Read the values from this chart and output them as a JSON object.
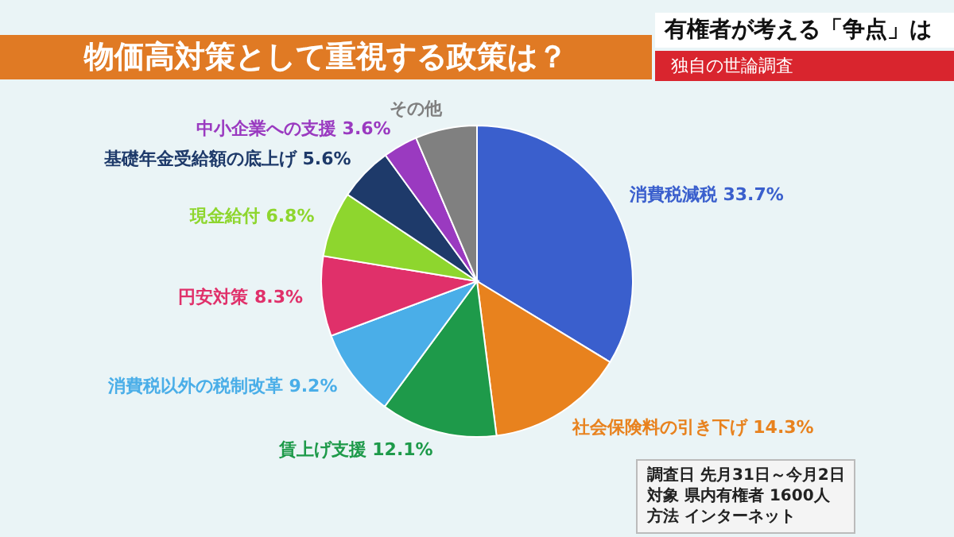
{
  "chart_data": {
    "type": "pie",
    "title": "物価高対策として重視する政策は？",
    "subtitle": "有権者が考える「争点」は",
    "categories": [
      "消費税減税",
      "社会保険料の引き下げ",
      "賃上げ支援",
      "消費税以外の税制改革",
      "円安対策",
      "現金給付",
      "基礎年金受給額の底上げ",
      "中小企業への支援",
      "その他"
    ],
    "values": [
      33.7,
      14.3,
      12.1,
      9.2,
      8.3,
      6.8,
      5.6,
      3.6,
      6.4
    ],
    "value_labels": [
      "33.7%",
      "14.3%",
      "12.1%",
      "9.2%",
      "8.3%",
      "6.8%",
      "5.6%",
      "3.6%",
      null
    ],
    "colors": [
      "#3a5fcd",
      "#e8821e",
      "#1e9a4a",
      "#4aaee8",
      "#e0306a",
      "#8ed62e",
      "#1e3a6a",
      "#9a3ac0",
      "#808080"
    ],
    "annotations": [
      "独自の世論調査",
      "調査日 先月31日～今月2日",
      "対象 県内有権者 1600人",
      "方法 インターネット"
    ]
  }
}
